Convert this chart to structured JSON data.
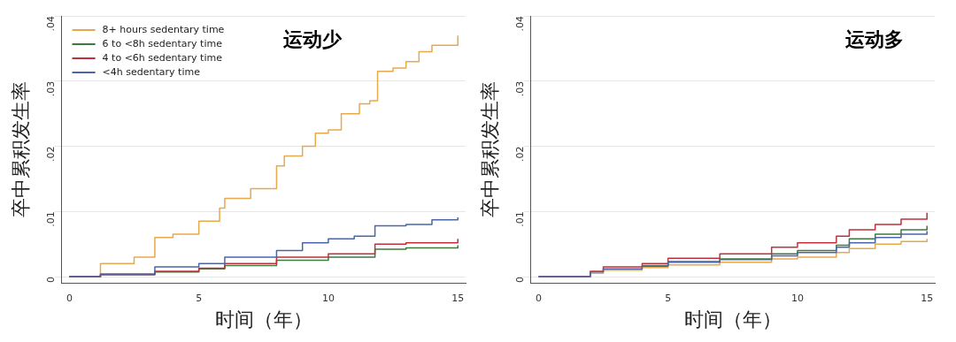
{
  "chart_data": [
    {
      "type": "step",
      "ylabel": "卒中累积发生率",
      "xlabel": "时间（年）",
      "annotations": [
        "运动少"
      ],
      "xlim": [
        -0.3,
        15.3
      ],
      "ylim": [
        -0.001,
        0.04
      ],
      "xticks": [
        0,
        5,
        10,
        15
      ],
      "yticks": [
        0,
        {
          "value": 0.01,
          "label": ".01"
        },
        {
          "value": 0.02,
          "label": ".02"
        },
        {
          "value": 0.03,
          "label": ".03"
        },
        {
          "value": 0.04,
          "label": ".04"
        }
      ],
      "grid": "y",
      "legend": "top left",
      "series": [
        {
          "name": "8+ hours sedentary time",
          "color": "#e8a94c",
          "x": [
            0,
            1.2,
            2.5,
            3.3,
            4,
            5,
            5.8,
            6,
            7,
            8,
            8.3,
            9,
            9.5,
            10,
            10.5,
            11.2,
            11.6,
            11.9,
            12.5,
            13,
            13.5,
            14,
            15
          ],
          "values": [
            0,
            0.002,
            0.003,
            0.006,
            0.0065,
            0.0085,
            0.0105,
            0.012,
            0.0135,
            0.017,
            0.0185,
            0.02,
            0.022,
            0.0225,
            0.025,
            0.0265,
            0.027,
            0.0315,
            0.032,
            0.033,
            0.0345,
            0.0355,
            0.037
          ]
        },
        {
          "name": "6 to <8h sedentary time",
          "color": "#3d7a3d",
          "x": [
            0,
            1.2,
            3.3,
            5,
            6,
            8,
            10,
            11.8,
            13,
            15
          ],
          "values": [
            0,
            0.0003,
            0.0007,
            0.0012,
            0.0017,
            0.0025,
            0.003,
            0.0042,
            0.0044,
            0.0048
          ]
        },
        {
          "name": "4 to <6h sedentary time",
          "color": "#c0303a",
          "x": [
            0,
            1.2,
            3.3,
            5,
            6,
            8,
            10,
            11.8,
            13,
            15
          ],
          "values": [
            0,
            0.0003,
            0.0008,
            0.0013,
            0.002,
            0.003,
            0.0035,
            0.005,
            0.0052,
            0.0058
          ]
        },
        {
          "name": "<4h sedentary time",
          "color": "#4a66a8",
          "x": [
            0,
            1.2,
            3.3,
            5,
            6,
            8,
            9,
            10,
            11,
            11.8,
            13,
            14,
            15
          ],
          "values": [
            0,
            0.0004,
            0.0015,
            0.002,
            0.003,
            0.004,
            0.0052,
            0.0058,
            0.0062,
            0.0078,
            0.008,
            0.0087,
            0.0091
          ]
        }
      ]
    },
    {
      "type": "step",
      "ylabel": "卒中累积发生率",
      "xlabel": "时间（年）",
      "annotations": [
        "运动多"
      ],
      "xlim": [
        -0.3,
        15.3
      ],
      "ylim": [
        -0.001,
        0.04
      ],
      "xticks": [
        0,
        5,
        10,
        15
      ],
      "yticks": [
        0,
        {
          "value": 0.01,
          "label": ".01"
        },
        {
          "value": 0.02,
          "label": ".02"
        },
        {
          "value": 0.03,
          "label": ".03"
        },
        {
          "value": 0.04,
          "label": ".04"
        }
      ],
      "grid": "y",
      "series": [
        {
          "color": "#e8a94c",
          "x": [
            0,
            2,
            2.5,
            4,
            5,
            7,
            9,
            10,
            11.5,
            12,
            13,
            14,
            15
          ],
          "values": [
            0,
            0.0005,
            0.001,
            0.0014,
            0.0018,
            0.0022,
            0.0027,
            0.003,
            0.0037,
            0.0043,
            0.005,
            0.0054,
            0.0058
          ]
        },
        {
          "color": "#3d7a3d",
          "x": [
            4,
            5,
            7,
            9,
            10,
            11.5,
            12,
            13,
            14,
            15
          ],
          "values": [
            0.0017,
            0.0023,
            0.0027,
            0.0035,
            0.004,
            0.0048,
            0.0058,
            0.0065,
            0.0072,
            0.0078
          ]
        },
        {
          "color": "#c0303a",
          "x": [
            0,
            2,
            2.5,
            4,
            5,
            7,
            9,
            10,
            11.5,
            12,
            13,
            14,
            15
          ],
          "values": [
            0,
            0.0008,
            0.0015,
            0.002,
            0.0028,
            0.0035,
            0.0045,
            0.0052,
            0.0062,
            0.0072,
            0.008,
            0.0088,
            0.0098
          ]
        },
        {
          "color": "#4a66a8",
          "x": [
            0,
            2,
            2.5,
            4,
            5,
            7,
            9,
            10,
            11.5,
            12,
            13,
            14,
            15
          ],
          "values": [
            0,
            0.0007,
            0.0012,
            0.0016,
            0.0022,
            0.0026,
            0.0032,
            0.0037,
            0.0045,
            0.0052,
            0.006,
            0.0065,
            0.007
          ]
        }
      ]
    }
  ]
}
